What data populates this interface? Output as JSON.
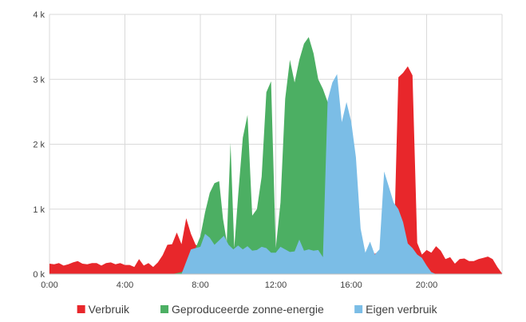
{
  "chart_data": {
    "type": "area",
    "title": "",
    "xlabel": "",
    "ylabel": "",
    "xlim": [
      0,
      24
    ],
    "ylim": [
      0,
      4000
    ],
    "grid": true,
    "legend_position": "bottom",
    "x_tick_labels": [
      {
        "value": 0,
        "label": "0:00"
      },
      {
        "value": 4,
        "label": "4:00"
      },
      {
        "value": 8,
        "label": "8:00"
      },
      {
        "value": 12,
        "label": "12:00"
      },
      {
        "value": 16,
        "label": "16:00"
      },
      {
        "value": 20,
        "label": "20:00"
      }
    ],
    "y_tick_labels": [
      {
        "value": 0,
        "label": "0 k"
      },
      {
        "value": 1000,
        "label": "1 k"
      },
      {
        "value": 2000,
        "label": "2 k"
      },
      {
        "value": 3000,
        "label": "3 k"
      },
      {
        "value": 4000,
        "label": "4 k"
      }
    ],
    "series": [
      {
        "name": "Verbruik",
        "color": "#e8272b",
        "points": [
          [
            0,
            160
          ],
          [
            0.25,
            150
          ],
          [
            0.5,
            170
          ],
          [
            0.75,
            130
          ],
          [
            1,
            150
          ],
          [
            1.25,
            180
          ],
          [
            1.5,
            200
          ],
          [
            1.75,
            160
          ],
          [
            2,
            150
          ],
          [
            2.25,
            170
          ],
          [
            2.5,
            170
          ],
          [
            2.75,
            130
          ],
          [
            3,
            170
          ],
          [
            3.25,
            180
          ],
          [
            3.5,
            150
          ],
          [
            3.75,
            170
          ],
          [
            4,
            140
          ],
          [
            4.25,
            140
          ],
          [
            4.5,
            110
          ],
          [
            4.75,
            230
          ],
          [
            5,
            130
          ],
          [
            5.25,
            170
          ],
          [
            5.5,
            110
          ],
          [
            5.75,
            180
          ],
          [
            6,
            290
          ],
          [
            6.25,
            450
          ],
          [
            6.5,
            460
          ],
          [
            6.75,
            640
          ],
          [
            7,
            460
          ],
          [
            7.25,
            860
          ],
          [
            7.5,
            620
          ],
          [
            7.75,
            450
          ],
          [
            8,
            420
          ],
          [
            8.5,
            400
          ],
          [
            9,
            420
          ],
          [
            9.5,
            410
          ],
          [
            10,
            420
          ],
          [
            10.5,
            400
          ],
          [
            11,
            380
          ],
          [
            11.5,
            400
          ],
          [
            12,
            380
          ],
          [
            12.5,
            400
          ],
          [
            13,
            400
          ],
          [
            13.5,
            380
          ],
          [
            14,
            370
          ],
          [
            14.5,
            350
          ],
          [
            15,
            330
          ],
          [
            15.5,
            300
          ],
          [
            16,
            280
          ],
          [
            16.5,
            280
          ],
          [
            17,
            300
          ],
          [
            17.5,
            330
          ],
          [
            18,
            320
          ],
          [
            18.25,
            270
          ],
          [
            18.5,
            3030
          ],
          [
            18.75,
            3100
          ],
          [
            19,
            3200
          ],
          [
            19.25,
            3060
          ],
          [
            19.5,
            480
          ],
          [
            19.75,
            300
          ],
          [
            20,
            370
          ],
          [
            20.25,
            330
          ],
          [
            20.5,
            430
          ],
          [
            20.75,
            360
          ],
          [
            21,
            230
          ],
          [
            21.25,
            260
          ],
          [
            21.5,
            160
          ],
          [
            21.75,
            230
          ],
          [
            22,
            240
          ],
          [
            22.25,
            200
          ],
          [
            22.5,
            200
          ],
          [
            22.75,
            230
          ],
          [
            23,
            250
          ],
          [
            23.25,
            270
          ],
          [
            23.5,
            230
          ],
          [
            23.75,
            110
          ],
          [
            24,
            10
          ]
        ]
      },
      {
        "name": "Geproduceerde zonne-energie",
        "color": "#4caf63",
        "points": [
          [
            6.5,
            0
          ],
          [
            7,
            30
          ],
          [
            7.5,
            170
          ],
          [
            7.75,
            400
          ],
          [
            8,
            580
          ],
          [
            8.25,
            950
          ],
          [
            8.5,
            1250
          ],
          [
            8.75,
            1400
          ],
          [
            9,
            1430
          ],
          [
            9.2,
            850
          ],
          [
            9.4,
            500
          ],
          [
            9.6,
            2020
          ],
          [
            9.8,
            400
          ],
          [
            10,
            1200
          ],
          [
            10.25,
            2100
          ],
          [
            10.5,
            2450
          ],
          [
            10.75,
            900
          ],
          [
            11,
            1000
          ],
          [
            11.25,
            1500
          ],
          [
            11.5,
            2800
          ],
          [
            11.75,
            2970
          ],
          [
            12,
            400
          ],
          [
            12.25,
            1100
          ],
          [
            12.5,
            2700
          ],
          [
            12.75,
            3300
          ],
          [
            13,
            2950
          ],
          [
            13.25,
            3300
          ],
          [
            13.5,
            3550
          ],
          [
            13.75,
            3650
          ],
          [
            14,
            3400
          ],
          [
            14.25,
            3000
          ],
          [
            14.5,
            2850
          ],
          [
            14.75,
            2650
          ],
          [
            15,
            1800
          ],
          [
            15.25,
            1500
          ],
          [
            15.5,
            800
          ],
          [
            15.75,
            400
          ],
          [
            16,
            200
          ],
          [
            16.5,
            150
          ],
          [
            17,
            100
          ],
          [
            17.5,
            50
          ],
          [
            18,
            20
          ],
          [
            18.5,
            0
          ]
        ]
      },
      {
        "name": "Eigen verbruik",
        "color": "#7bbde6",
        "points": [
          [
            7,
            0
          ],
          [
            7.5,
            380
          ],
          [
            8,
            420
          ],
          [
            8.25,
            620
          ],
          [
            8.5,
            560
          ],
          [
            8.75,
            450
          ],
          [
            9,
            520
          ],
          [
            9.25,
            590
          ],
          [
            9.5,
            450
          ],
          [
            9.75,
            380
          ],
          [
            10,
            440
          ],
          [
            10.25,
            380
          ],
          [
            10.5,
            430
          ],
          [
            10.75,
            360
          ],
          [
            11,
            370
          ],
          [
            11.25,
            420
          ],
          [
            11.5,
            400
          ],
          [
            11.75,
            330
          ],
          [
            12,
            330
          ],
          [
            12.25,
            420
          ],
          [
            12.5,
            380
          ],
          [
            12.75,
            340
          ],
          [
            13,
            350
          ],
          [
            13.25,
            530
          ],
          [
            13.5,
            360
          ],
          [
            13.75,
            380
          ],
          [
            14,
            360
          ],
          [
            14.25,
            370
          ],
          [
            14.5,
            260
          ],
          [
            14.75,
            2680
          ],
          [
            15,
            2950
          ],
          [
            15.25,
            3080
          ],
          [
            15.5,
            2340
          ],
          [
            15.75,
            2650
          ],
          [
            16,
            2350
          ],
          [
            16.25,
            1800
          ],
          [
            16.5,
            700
          ],
          [
            16.75,
            330
          ],
          [
            17,
            500
          ],
          [
            17.25,
            300
          ],
          [
            17.5,
            380
          ],
          [
            17.75,
            1580
          ],
          [
            18,
            1340
          ],
          [
            18.25,
            1100
          ],
          [
            18.5,
            1000
          ],
          [
            18.75,
            800
          ],
          [
            19,
            470
          ],
          [
            19.25,
            400
          ],
          [
            19.5,
            300
          ],
          [
            19.75,
            250
          ],
          [
            20,
            130
          ],
          [
            20.25,
            30
          ],
          [
            20.5,
            0
          ]
        ]
      }
    ]
  }
}
